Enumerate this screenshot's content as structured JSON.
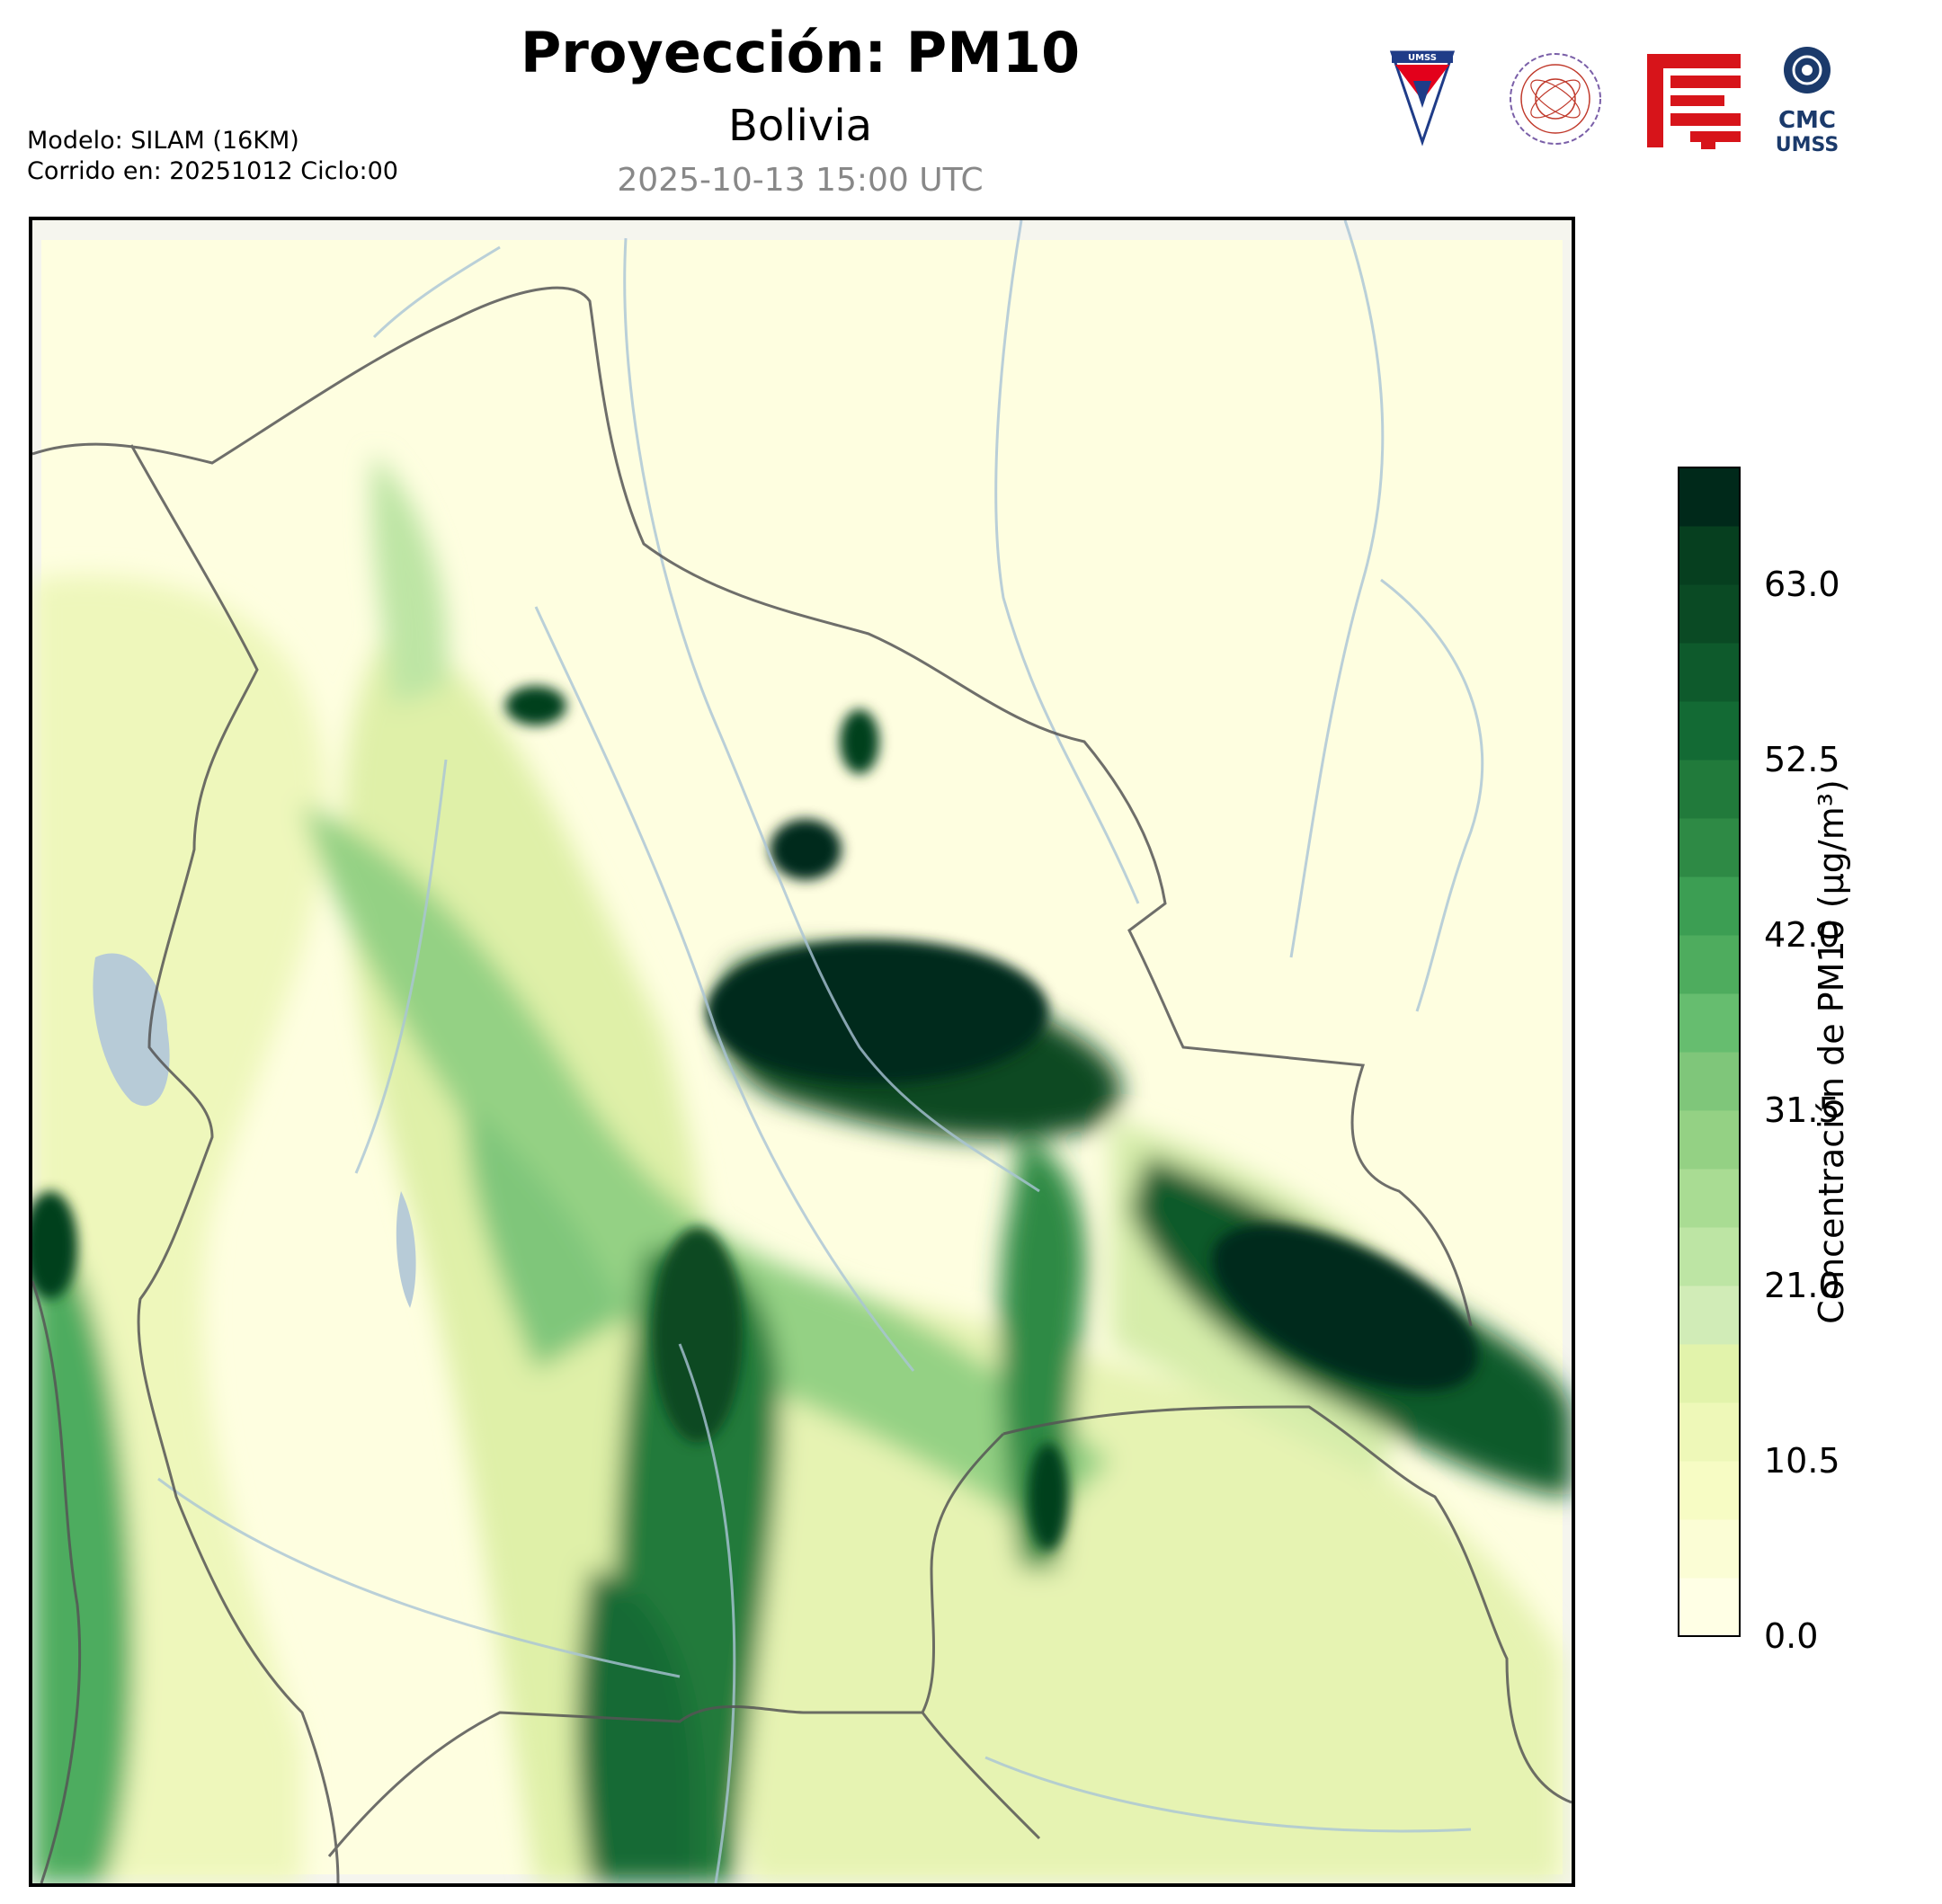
{
  "header": {
    "title": "Proyección: PM10",
    "subtitle": "Bolivia",
    "timestamp": "2025-10-13 15:00 UTC"
  },
  "meta": {
    "model": "Modelo: SILAM (16KM)",
    "run": "Corrido en: 20251012 Ciclo:00"
  },
  "logos": {
    "umss_text": "UMSS",
    "cmc_line1": "CMC",
    "cmc_line2": "UMSS"
  },
  "colorbar": {
    "label": "Concentración de PM10 (µg/m³)",
    "min": 0.0,
    "max": 70.0,
    "ticks": [
      "0.0",
      "10.5",
      "21.0",
      "31.5",
      "42.0",
      "52.5",
      "63.0"
    ],
    "tick_values": [
      0.0,
      10.5,
      21.0,
      31.5,
      42.0,
      52.5,
      63.0
    ],
    "levels": 20,
    "colors": [
      "#ffffe5",
      "#fbfdd5",
      "#f7fcc4",
      "#eef8b8",
      "#e2f3ab",
      "#d1ecb7",
      "#bde5a4",
      "#a9dc93",
      "#94d184",
      "#7fc67a",
      "#66bd6f",
      "#4eac5e",
      "#3c9e53",
      "#2e8a45",
      "#217a3b",
      "#136a34",
      "#0e5a2c",
      "#0a4a24",
      "#063f1f",
      "#00291a"
    ]
  }
}
